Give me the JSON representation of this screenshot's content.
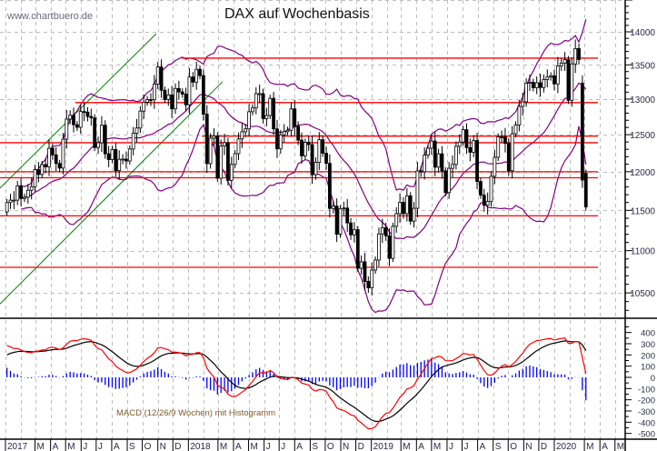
{
  "watermark": "www.chartbuero.de",
  "chart_data": {
    "type": "candlestick",
    "title": "DAX auf Wochenbasis",
    "price_axis": {
      "scale": "log",
      "range": [
        10250,
        14500
      ],
      "ticks": [
        14000,
        13500,
        13000,
        12500,
        12000,
        11500,
        11000,
        10500
      ]
    },
    "grid": true,
    "series": {
      "dates": [
        "2017-01-06",
        "2017-01-13",
        "2017-01-20",
        "2017-01-27",
        "2017-02-03",
        "2017-02-10",
        "2017-02-17",
        "2017-02-24",
        "2017-03-03",
        "2017-03-10",
        "2017-03-17",
        "2017-03-24",
        "2017-03-31",
        "2017-04-07",
        "2017-04-14",
        "2017-04-21",
        "2017-04-28",
        "2017-05-05",
        "2017-05-12",
        "2017-05-19",
        "2017-05-26",
        "2017-06-02",
        "2017-06-09",
        "2017-06-16",
        "2017-06-23",
        "2017-06-30",
        "2017-07-07",
        "2017-07-14",
        "2017-07-21",
        "2017-07-28",
        "2017-08-04",
        "2017-08-11",
        "2017-08-18",
        "2017-08-25",
        "2017-09-01",
        "2017-09-08",
        "2017-09-15",
        "2017-09-22",
        "2017-09-29",
        "2017-10-06",
        "2017-10-13",
        "2017-10-20",
        "2017-10-27",
        "2017-11-03",
        "2017-11-10",
        "2017-11-17",
        "2017-11-24",
        "2017-12-01",
        "2017-12-08",
        "2017-12-15",
        "2017-12-22",
        "2017-12-29",
        "2018-01-05",
        "2018-01-12",
        "2018-01-19",
        "2018-01-26",
        "2018-02-02",
        "2018-02-09",
        "2018-02-16",
        "2018-02-23",
        "2018-03-02",
        "2018-03-09",
        "2018-03-16",
        "2018-03-23",
        "2018-03-30",
        "2018-04-06",
        "2018-04-13",
        "2018-04-20",
        "2018-04-27",
        "2018-05-04",
        "2018-05-11",
        "2018-05-18",
        "2018-05-25",
        "2018-06-01",
        "2018-06-08",
        "2018-06-15",
        "2018-06-22",
        "2018-06-29",
        "2018-07-06",
        "2018-07-13",
        "2018-07-20",
        "2018-07-27",
        "2018-08-03",
        "2018-08-10",
        "2018-08-17",
        "2018-08-24",
        "2018-08-31",
        "2018-09-07",
        "2018-09-14",
        "2018-09-21",
        "2018-09-28",
        "2018-10-05",
        "2018-10-12",
        "2018-10-19",
        "2018-10-26",
        "2018-11-02",
        "2018-11-09",
        "2018-11-16",
        "2018-11-23",
        "2018-11-30",
        "2018-12-07",
        "2018-12-14",
        "2018-12-21",
        "2018-12-28",
        "2019-01-04",
        "2019-01-11",
        "2019-01-18",
        "2019-01-25",
        "2019-02-01",
        "2019-02-08",
        "2019-02-15",
        "2019-02-22",
        "2019-03-01",
        "2019-03-08",
        "2019-03-15",
        "2019-03-22",
        "2019-03-29",
        "2019-04-05",
        "2019-04-12",
        "2019-04-19",
        "2019-04-26",
        "2019-05-03",
        "2019-05-10",
        "2019-05-17",
        "2019-05-24",
        "2019-05-31",
        "2019-06-07",
        "2019-06-14",
        "2019-06-21",
        "2019-06-28",
        "2019-07-05",
        "2019-07-12",
        "2019-07-19",
        "2019-07-26",
        "2019-08-02",
        "2019-08-09",
        "2019-08-16",
        "2019-08-23",
        "2019-08-30",
        "2019-09-06",
        "2019-09-13",
        "2019-09-20",
        "2019-09-27",
        "2019-10-04",
        "2019-10-11",
        "2019-10-18",
        "2019-10-25",
        "2019-11-01",
        "2019-11-08",
        "2019-11-15",
        "2019-11-22",
        "2019-11-29",
        "2019-12-06",
        "2019-12-13",
        "2019-12-20",
        "2019-12-27",
        "2020-01-03",
        "2020-01-10",
        "2020-01-17",
        "2020-01-24",
        "2020-01-31",
        "2020-02-07",
        "2020-02-14",
        "2020-02-21",
        "2020-02-28",
        "2020-03-06"
      ],
      "close": [
        11599,
        11630,
        11630,
        11814,
        11651,
        11667,
        11757,
        11804,
        12027,
        11963,
        12095,
        12064,
        12313,
        12225,
        12109,
        12048,
        12438,
        12716,
        12770,
        12638,
        12602,
        12823,
        12815,
        12753,
        12733,
        12325,
        12389,
        12631,
        12240,
        12162,
        12298,
        12014,
        12165,
        12168,
        12143,
        12304,
        12519,
        12592,
        12829,
        12956,
        12992,
        12991,
        13217,
        13468,
        13127,
        12994,
        13060,
        12861,
        13153,
        13103,
        13072,
        12918,
        13320,
        13245,
        13434,
        13340,
        12785,
        12107,
        12452,
        12483,
        11914,
        12346,
        12390,
        11886,
        12097,
        12241,
        12442,
        12540,
        12580,
        12820,
        12874,
        13078,
        13078,
        12724,
        12767,
        13011,
        12580,
        12306,
        12497,
        12541,
        12561,
        12860,
        12616,
        12425,
        12211,
        12395,
        12364,
        11960,
        12124,
        12431,
        12247,
        12111,
        11524,
        11554,
        11201,
        11519,
        11529,
        11342,
        11193,
        11257,
        10788,
        10866,
        10634,
        10559,
        10767,
        10887,
        11205,
        11282,
        11181,
        10907,
        11299,
        11458,
        11602,
        11458,
        11686,
        11364,
        11526,
        12010,
        11999,
        12222,
        12315,
        12413,
        12060,
        12239,
        12011,
        11727,
        12045,
        12096,
        12340,
        12399,
        12569,
        12323,
        12260,
        12419,
        11872,
        11694,
        11563,
        11612,
        11939,
        12192,
        12469,
        12468,
        12381,
        12013,
        12512,
        12634,
        12895,
        12961,
        13229,
        13242,
        13164,
        13236,
        13167,
        13283,
        13319,
        13337,
        13219,
        13483,
        13526,
        13577,
        12982,
        13514,
        13744,
        13579,
        11890,
        11542
      ],
      "first_open": 11480,
      "open_overrides": {
        "164": 13230,
        "165": 11980
      }
    },
    "horizontal_levels": [
      {
        "value": 13600,
        "from": "2017-12-19"
      },
      {
        "value": 12950,
        "from": "2017-05-20"
      },
      {
        "value": 12480,
        "from": "2018-01-28"
      },
      {
        "value": 12390,
        "from": "2016-12-01"
      },
      {
        "value": 12000,
        "from": "2016-12-01"
      },
      {
        "value": 11920,
        "from": "2016-12-01"
      },
      {
        "value": 11430,
        "from": "2016-12-01"
      },
      {
        "value": 10800,
        "from": "2016-12-01"
      }
    ],
    "level_color": "#ff0000",
    "trendlines": [
      {
        "from": [
          "2016-12-21",
          11785
        ],
        "to": [
          "2017-10-29",
          13972
        ]
      },
      {
        "from": [
          "2016-12-21",
          10373
        ],
        "to": [
          "2018-03-10",
          13250
        ]
      }
    ],
    "trendline_color": "#008000",
    "bollinger": {
      "period": 20,
      "stddev": 2,
      "color": "#800080"
    },
    "macd": {
      "label": "MACD (12/26/9 Wochen) mit Histogramm",
      "fast": 12,
      "slow": 26,
      "signal": 9,
      "macd_color": "#ff0000",
      "signal_color": "#000000",
      "histogram_color": "#0000ff",
      "ticks": [
        400,
        300,
        200,
        100,
        0,
        -100,
        -200,
        -300,
        -400,
        -500
      ],
      "range": [
        -500,
        450
      ]
    },
    "x_axis": {
      "labels": [
        {
          "text": "2017",
          "date": "2017-01-01"
        },
        {
          "text": "M",
          "date": "2017-03-01"
        },
        {
          "text": "A",
          "date": "2017-04-01"
        },
        {
          "text": "M",
          "date": "2017-05-01"
        },
        {
          "text": "J",
          "date": "2017-06-01"
        },
        {
          "text": "J",
          "date": "2017-07-01"
        },
        {
          "text": "A",
          "date": "2017-08-01"
        },
        {
          "text": "S",
          "date": "2017-09-01"
        },
        {
          "text": "O",
          "date": "2017-10-01"
        },
        {
          "text": "N",
          "date": "2017-11-01"
        },
        {
          "text": "D",
          "date": "2017-12-01"
        },
        {
          "text": "2018",
          "date": "2018-01-01"
        },
        {
          "text": "M",
          "date": "2018-03-01"
        },
        {
          "text": "A",
          "date": "2018-04-01"
        },
        {
          "text": "M",
          "date": "2018-05-01"
        },
        {
          "text": "J",
          "date": "2018-06-01"
        },
        {
          "text": "J",
          "date": "2018-07-01"
        },
        {
          "text": "A",
          "date": "2018-08-01"
        },
        {
          "text": "S",
          "date": "2018-09-01"
        },
        {
          "text": "O",
          "date": "2018-10-01"
        },
        {
          "text": "N",
          "date": "2018-11-01"
        },
        {
          "text": "D",
          "date": "2018-12-01"
        },
        {
          "text": "2019",
          "date": "2019-01-01"
        },
        {
          "text": "M",
          "date": "2019-03-01"
        },
        {
          "text": "A",
          "date": "2019-04-01"
        },
        {
          "text": "M",
          "date": "2019-05-01"
        },
        {
          "text": "J",
          "date": "2019-06-01"
        },
        {
          "text": "J",
          "date": "2019-07-01"
        },
        {
          "text": "A",
          "date": "2019-08-01"
        },
        {
          "text": "S",
          "date": "2019-09-01"
        },
        {
          "text": "O",
          "date": "2019-10-01"
        },
        {
          "text": "N",
          "date": "2019-11-01"
        },
        {
          "text": "D",
          "date": "2019-12-01"
        },
        {
          "text": "2020",
          "date": "2020-01-01"
        },
        {
          "text": "M",
          "date": "2020-03-01"
        },
        {
          "text": "A",
          "date": "2020-04-01"
        },
        {
          "text": "M",
          "date": "2020-05-01"
        }
      ]
    }
  }
}
